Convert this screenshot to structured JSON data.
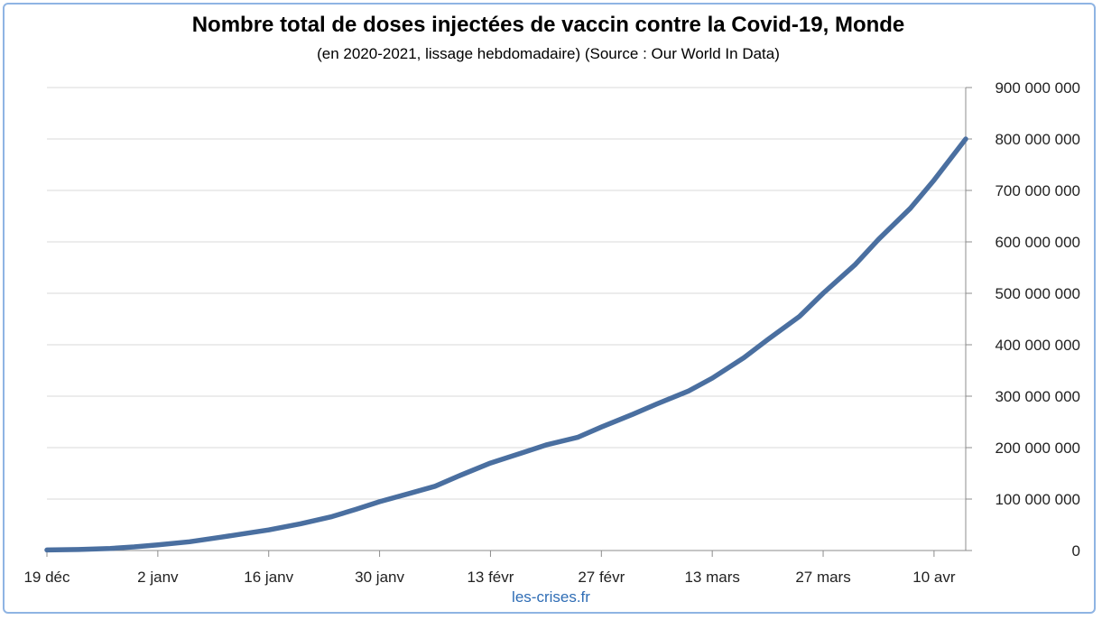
{
  "colors": {
    "line": "#4a6fa0",
    "grid": "#d9d9d9",
    "axis": "#8c8c8c",
    "border": "#8fb4e3",
    "source": "#2f6db5"
  },
  "source_label": "les-crises.fr",
  "chart_data": {
    "type": "line",
    "title": "Nombre total de doses injectées de vaccin contre la Covid-19, Monde",
    "subtitle": "(en 2020-2021, lissage hebdomadaire) (Source : Our World In Data)",
    "xlabel": "",
    "ylabel": "",
    "grid": true,
    "y_axis_side": "right",
    "ylim": [
      0,
      900000000
    ],
    "xlim": [
      "2020-12-19",
      "2021-04-14"
    ],
    "y_ticks": [
      {
        "value": 0,
        "label": "0"
      },
      {
        "value": 100000000,
        "label": "100 000 000"
      },
      {
        "value": 200000000,
        "label": "200 000 000"
      },
      {
        "value": 300000000,
        "label": "300 000 000"
      },
      {
        "value": 400000000,
        "label": "400 000 000"
      },
      {
        "value": 500000000,
        "label": "500 000 000"
      },
      {
        "value": 600000000,
        "label": "600 000 000"
      },
      {
        "value": 700000000,
        "label": "700 000 000"
      },
      {
        "value": 800000000,
        "label": "800 000 000"
      },
      {
        "value": 900000000,
        "label": "900 000 000"
      }
    ],
    "x_ticks": [
      {
        "date": "2020-12-19",
        "label": "19 déc"
      },
      {
        "date": "2021-01-02",
        "label": "2 janv"
      },
      {
        "date": "2021-01-16",
        "label": "16 janv"
      },
      {
        "date": "2021-01-30",
        "label": "30 janv"
      },
      {
        "date": "2021-02-13",
        "label": "13 févr"
      },
      {
        "date": "2021-02-27",
        "label": "27 févr"
      },
      {
        "date": "2021-03-13",
        "label": "13 mars"
      },
      {
        "date": "2021-03-27",
        "label": "27 mars"
      },
      {
        "date": "2021-04-10",
        "label": "10 avr"
      }
    ],
    "series": [
      {
        "x": [
          "2020-12-19",
          "2020-12-23",
          "2020-12-27",
          "2020-12-30",
          "2021-01-02",
          "2021-01-06",
          "2021-01-10",
          "2021-01-13",
          "2021-01-16",
          "2021-01-20",
          "2021-01-24",
          "2021-01-27",
          "2021-01-30",
          "2021-02-03",
          "2021-02-06",
          "2021-02-09",
          "2021-02-13",
          "2021-02-17",
          "2021-02-20",
          "2021-02-24",
          "2021-02-27",
          "2021-03-03",
          "2021-03-06",
          "2021-03-10",
          "2021-03-13",
          "2021-03-17",
          "2021-03-20",
          "2021-03-24",
          "2021-03-27",
          "2021-03-31",
          "2021-04-03",
          "2021-04-07",
          "2021-04-10",
          "2021-04-14"
        ],
        "values": [
          1000000,
          2000000,
          4000000,
          7000000,
          11000000,
          17000000,
          26000000,
          33000000,
          40000000,
          52000000,
          66000000,
          80000000,
          95000000,
          112000000,
          125000000,
          145000000,
          170000000,
          190000000,
          205000000,
          220000000,
          240000000,
          265000000,
          285000000,
          310000000,
          335000000,
          375000000,
          410000000,
          455000000,
          500000000,
          555000000,
          605000000,
          665000000,
          720000000,
          800000000
        ]
      }
    ]
  }
}
